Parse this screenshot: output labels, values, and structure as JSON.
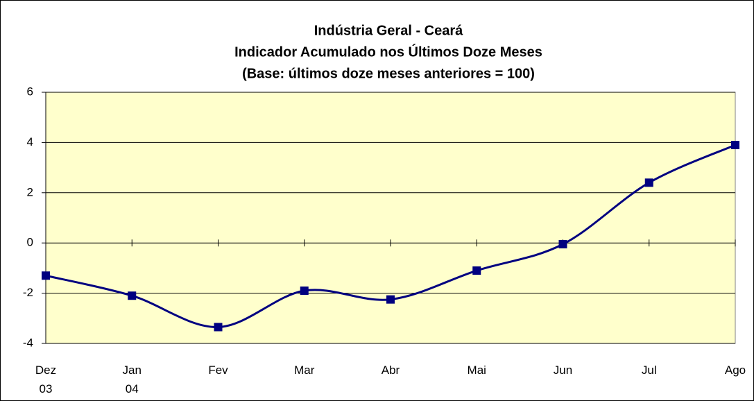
{
  "chart_data": {
    "type": "line",
    "title": [
      "Indústria Geral - Ceará",
      "Indicador Acumulado nos Últimos Doze Meses",
      "(Base: últimos doze meses anteriores = 100)"
    ],
    "categories": [
      "Dez\n03",
      "Jan\n04",
      "Fev",
      "Mar",
      "Abr",
      "Mai",
      "Jun",
      "Jul",
      "Ago"
    ],
    "series": [
      {
        "color": "#000080",
        "values": [
          -1.3,
          -2.1,
          -3.35,
          -1.9,
          -2.25,
          -1.1,
          -0.05,
          2.4,
          3.9
        ]
      }
    ],
    "ylim": [
      -4,
      6
    ],
    "yticks": [
      -4,
      -2,
      0,
      2,
      4,
      6
    ],
    "grid": true,
    "smooth": true,
    "plot_background": "#ffffcc"
  }
}
